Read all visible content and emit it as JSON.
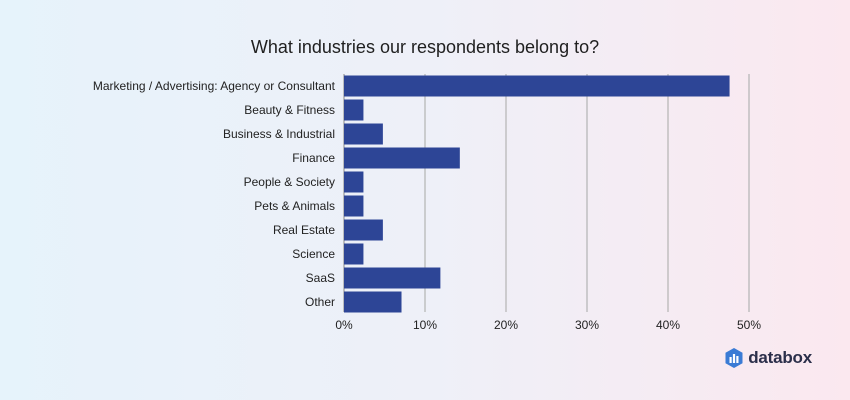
{
  "chart_data": {
    "type": "bar",
    "orientation": "horizontal",
    "title": "What industries our respondents belong to?",
    "categories": [
      "Marketing / Advertising: Agency or Consultant",
      "Beauty & Fitness",
      "Business & Industrial",
      "Finance",
      "People & Society",
      "Pets & Animals",
      "Real Estate",
      "Science",
      "SaaS",
      "Other"
    ],
    "values": [
      47.6,
      2.4,
      4.8,
      14.3,
      2.4,
      2.4,
      4.8,
      2.4,
      11.9,
      7.1
    ],
    "xlim": [
      0,
      50
    ],
    "xticks": [
      "0%",
      "10%",
      "20%",
      "30%",
      "40%",
      "50%"
    ],
    "grid": true,
    "bar_color": "#2d4596",
    "xlabel": "",
    "ylabel": ""
  },
  "brand": {
    "name": "databox",
    "logo_icon": "databox-logo-icon",
    "logo_color": "#3a7bd5"
  }
}
